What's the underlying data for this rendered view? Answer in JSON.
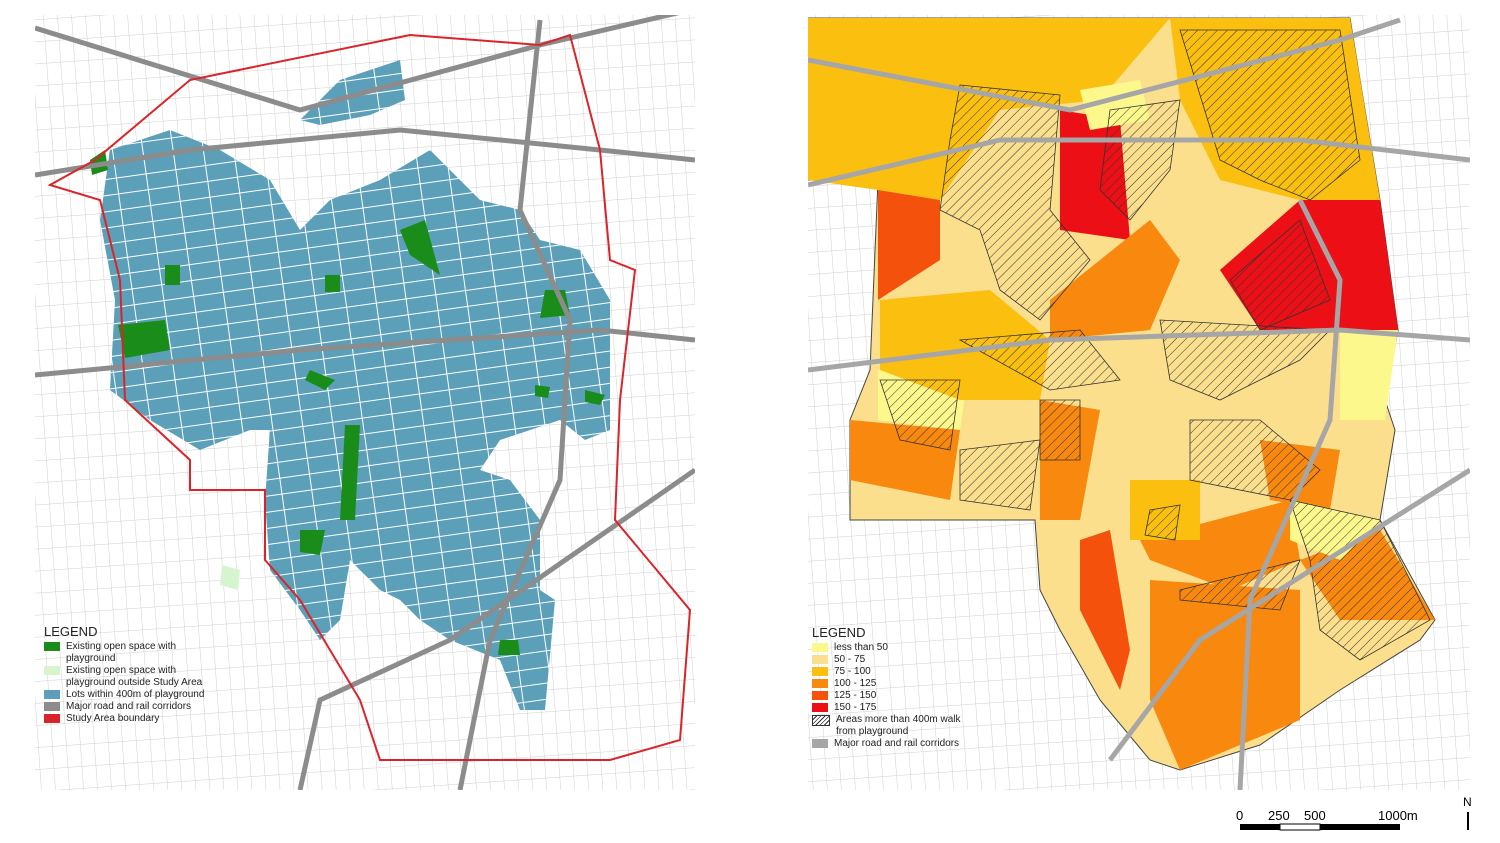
{
  "left_map": {
    "legend": {
      "title": "LEGEND",
      "items": [
        {
          "label": "Existing open space with playground",
          "color": "#1a8c1a"
        },
        {
          "label": "Existing open space with playground outside Study Area",
          "color": "#d6f5cf"
        },
        {
          "label": "Lots within 400m of playground",
          "color": "#5b9fb8"
        },
        {
          "label": "Major road and rail corridors",
          "color": "#8c8c8c"
        },
        {
          "label": "Study Area boundary",
          "color": "#d9252a"
        }
      ]
    }
  },
  "right_map": {
    "legend": {
      "title": "LEGEND",
      "items": [
        {
          "label": "less than 50",
          "color": "#fdf88c"
        },
        {
          "label": "50  -  75",
          "color": "#fcdf8c"
        },
        {
          "label": "75  -  100",
          "color": "#fbbf10"
        },
        {
          "label": "100 - 125",
          "color": "#f8880e"
        },
        {
          "label": "125 - 150",
          "color": "#f4520c"
        },
        {
          "label": "150 - 175",
          "color": "#ec0f16"
        },
        {
          "label": "Areas more than 400m walk from playground",
          "color": "hatch"
        },
        {
          "label": "Major road and rail corridors",
          "color": "#a6a6a6"
        }
      ]
    }
  },
  "scale_bar": {
    "labels": [
      "0",
      "250",
      "500",
      "1000m"
    ]
  },
  "north_arrow": {
    "label": "N"
  }
}
